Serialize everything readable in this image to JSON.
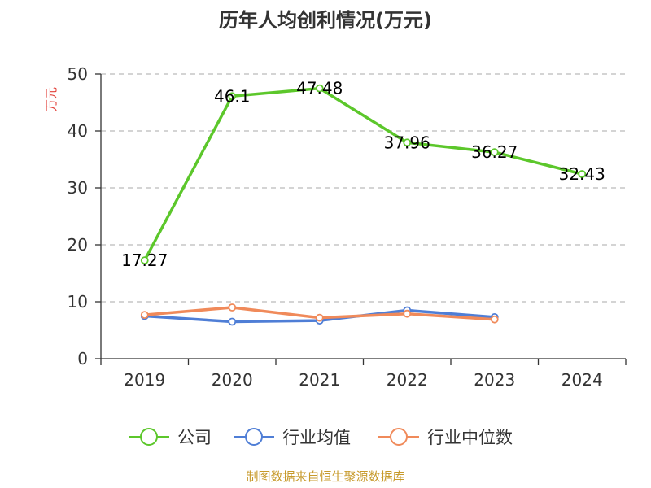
{
  "chart_data": {
    "type": "line",
    "title": "历年人均创利情况(万元)",
    "ylabel": "万元",
    "categories": [
      "2019",
      "2020",
      "2021",
      "2022",
      "2023",
      "2024"
    ],
    "ylim": [
      0,
      50
    ],
    "yticks": [
      0,
      10,
      20,
      30,
      40,
      50
    ],
    "grid": true,
    "legend_position": "bottom",
    "series": [
      {
        "name": "公司",
        "color": "#5cc72b",
        "values": [
          17.27,
          46.1,
          47.48,
          37.96,
          36.27,
          32.43
        ],
        "labels": [
          "17.27",
          "46.1",
          "47.48",
          "37.96",
          "36.27",
          "32.43"
        ]
      },
      {
        "name": "行业均值",
        "color": "#4f7ed6",
        "values": [
          7.5,
          6.5,
          6.7,
          8.5,
          7.3,
          null
        ]
      },
      {
        "name": "行业中位数",
        "color": "#f08a5a",
        "values": [
          7.7,
          9.0,
          7.2,
          7.9,
          6.9,
          null
        ]
      }
    ]
  },
  "source": "制图数据来自恒生聚源数据库",
  "colors": {
    "ylabel": "#e2413a",
    "source": "#c79a2b",
    "grid": "#bbbbbb",
    "axis": "#333333"
  }
}
